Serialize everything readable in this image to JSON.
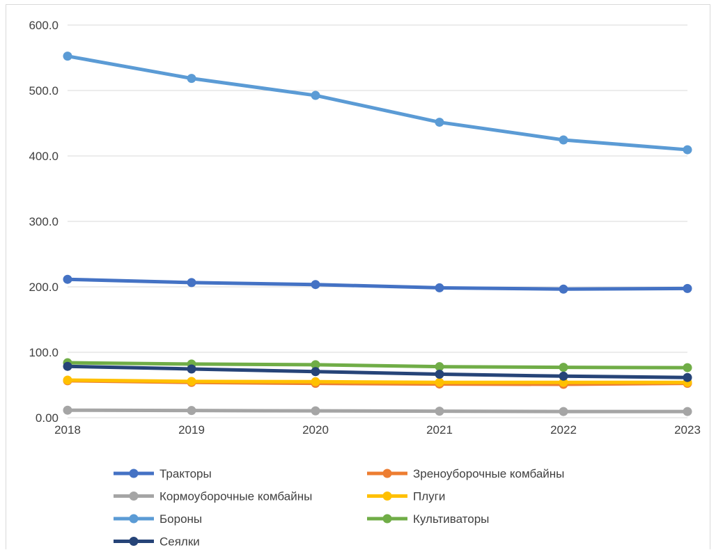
{
  "chart_data": {
    "type": "line",
    "title": "",
    "xlabel": "",
    "ylabel": "",
    "categories": [
      "2018",
      "2019",
      "2020",
      "2021",
      "2022",
      "2023"
    ],
    "y_ticks": [
      "0.00",
      "100.0",
      "200.0",
      "300.0",
      "400.0",
      "500.0",
      "600.0"
    ],
    "ylim": [
      0,
      600
    ],
    "grid": true,
    "legend_position": "bottom",
    "series": [
      {
        "name": "Тракторы",
        "color": "#4472c4",
        "values": [
          211.5,
          206.5,
          203.5,
          198.5,
          196.5,
          197.5
        ]
      },
      {
        "name": "Зреноуборочные комбайны",
        "color": "#ed7d31",
        "values": [
          56.5,
          54.0,
          52.5,
          51.5,
          51.0,
          52.5
        ]
      },
      {
        "name": "Кормоуборочные комбайны",
        "color": "#a5a5a5",
        "values": [
          11.5,
          11.0,
          10.5,
          10.0,
          9.5,
          9.5
        ]
      },
      {
        "name": "Плуги",
        "color": "#ffc000",
        "values": [
          57.5,
          55.5,
          55.0,
          54.0,
          54.0,
          54.0
        ]
      },
      {
        "name": "Бороны",
        "color": "#5b9bd5",
        "values": [
          552.5,
          518.5,
          492.5,
          451.5,
          424.5,
          409.5
        ]
      },
      {
        "name": "Культиваторы",
        "color": "#70ad47",
        "values": [
          84.0,
          82.0,
          81.0,
          78.0,
          77.0,
          76.5
        ]
      },
      {
        "name": "Сеялки",
        "color": "#264478",
        "values": [
          78.5,
          74.5,
          70.5,
          66.5,
          63.5,
          61.5
        ]
      }
    ]
  }
}
